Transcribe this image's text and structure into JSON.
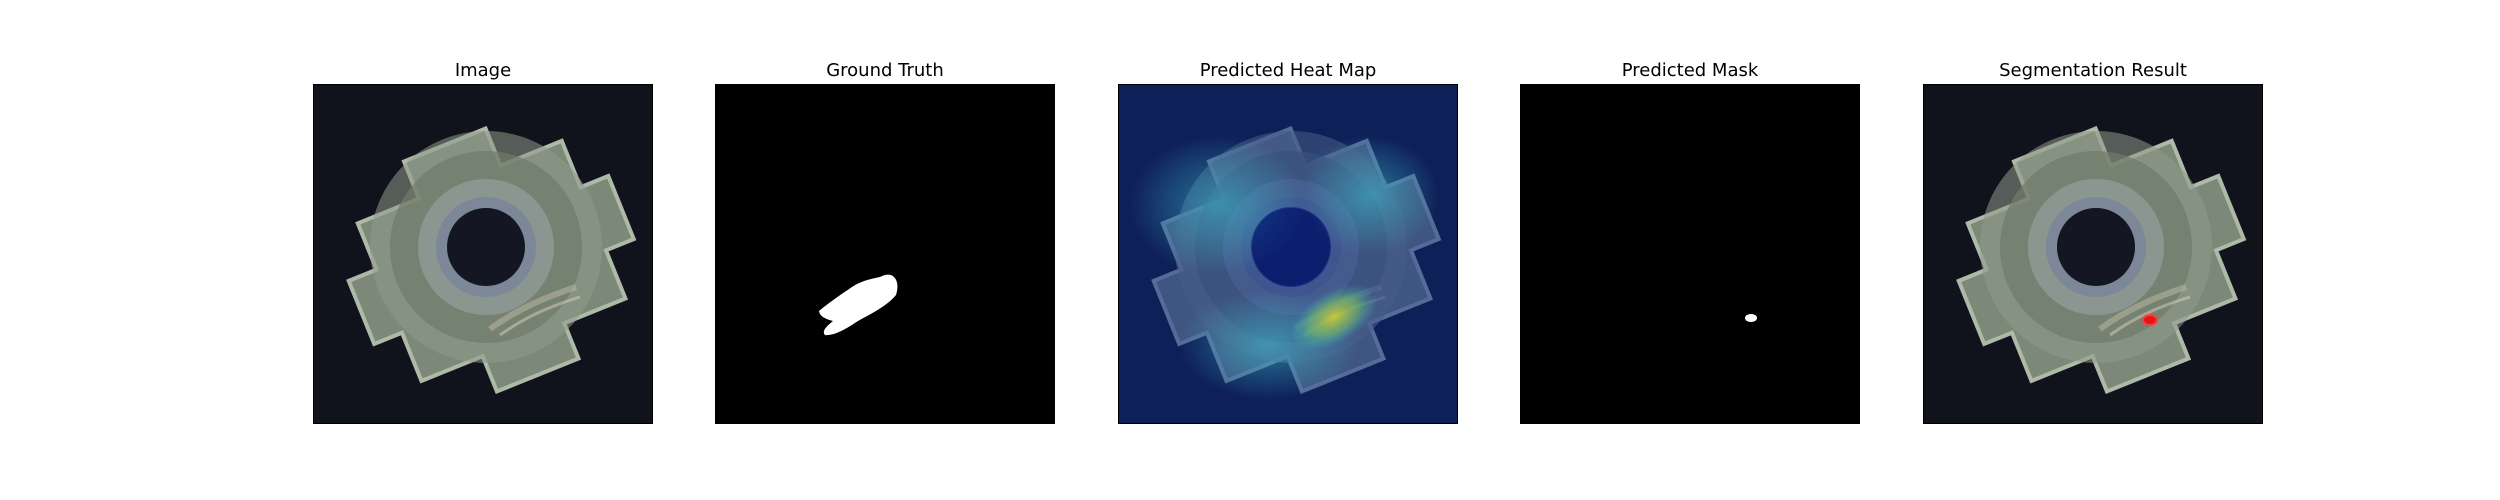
{
  "figure": {
    "panels": [
      {
        "title": "Image"
      },
      {
        "title": "Ground Truth"
      },
      {
        "title": "Predicted Heat Map"
      },
      {
        "title": "Predicted Mask"
      },
      {
        "title": "Segmentation Result"
      }
    ]
  },
  "colors": {
    "background": "#11131c",
    "metal_light": "#9aa596",
    "metal_dark": "#56604e",
    "mask": "#ffffff",
    "heat_low": "#0d2b8a",
    "heat_mid": "#2fb3c8",
    "heat_high": "#c9c53b",
    "segmentation_overlay": "#e01717"
  }
}
